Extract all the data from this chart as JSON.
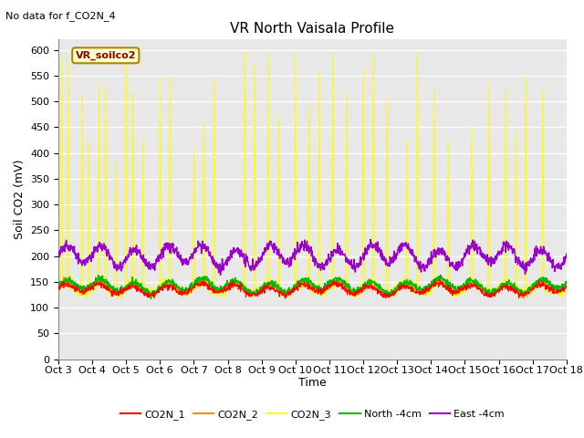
{
  "title": "VR North Vaisala Profile",
  "subtitle": "No data for f_CO2N_4",
  "ylabel": "Soil CO2 (mV)",
  "xlabel": "Time",
  "box_label": "VR_soilco2",
  "ylim": [
    0,
    620
  ],
  "yticks": [
    0,
    50,
    100,
    150,
    200,
    250,
    300,
    350,
    400,
    450,
    500,
    550,
    600
  ],
  "xtick_labels": [
    "Oct 3",
    "Oct 4",
    "Oct 5",
    "Oct 6",
    "Oct 7",
    "Oct 8",
    "Oct 9",
    "Oct 10",
    "Oct 11",
    "Oct 12",
    "Oct 13",
    "Oct 14",
    "Oct 15",
    "Oct 16",
    "Oct 17",
    "Oct 18"
  ],
  "colors": {
    "CO2N_1": "#ff0000",
    "CO2N_2": "#ff8800",
    "CO2N_3": "#ffff00",
    "North": "#00bb00",
    "East": "#9900cc"
  },
  "legend_labels": [
    "CO2N_1",
    "CO2N_2",
    "CO2N_3",
    "North -4cm",
    "East -4cm"
  ],
  "plot_bg": "#e8e8e8",
  "fig_bg": "#ffffff"
}
